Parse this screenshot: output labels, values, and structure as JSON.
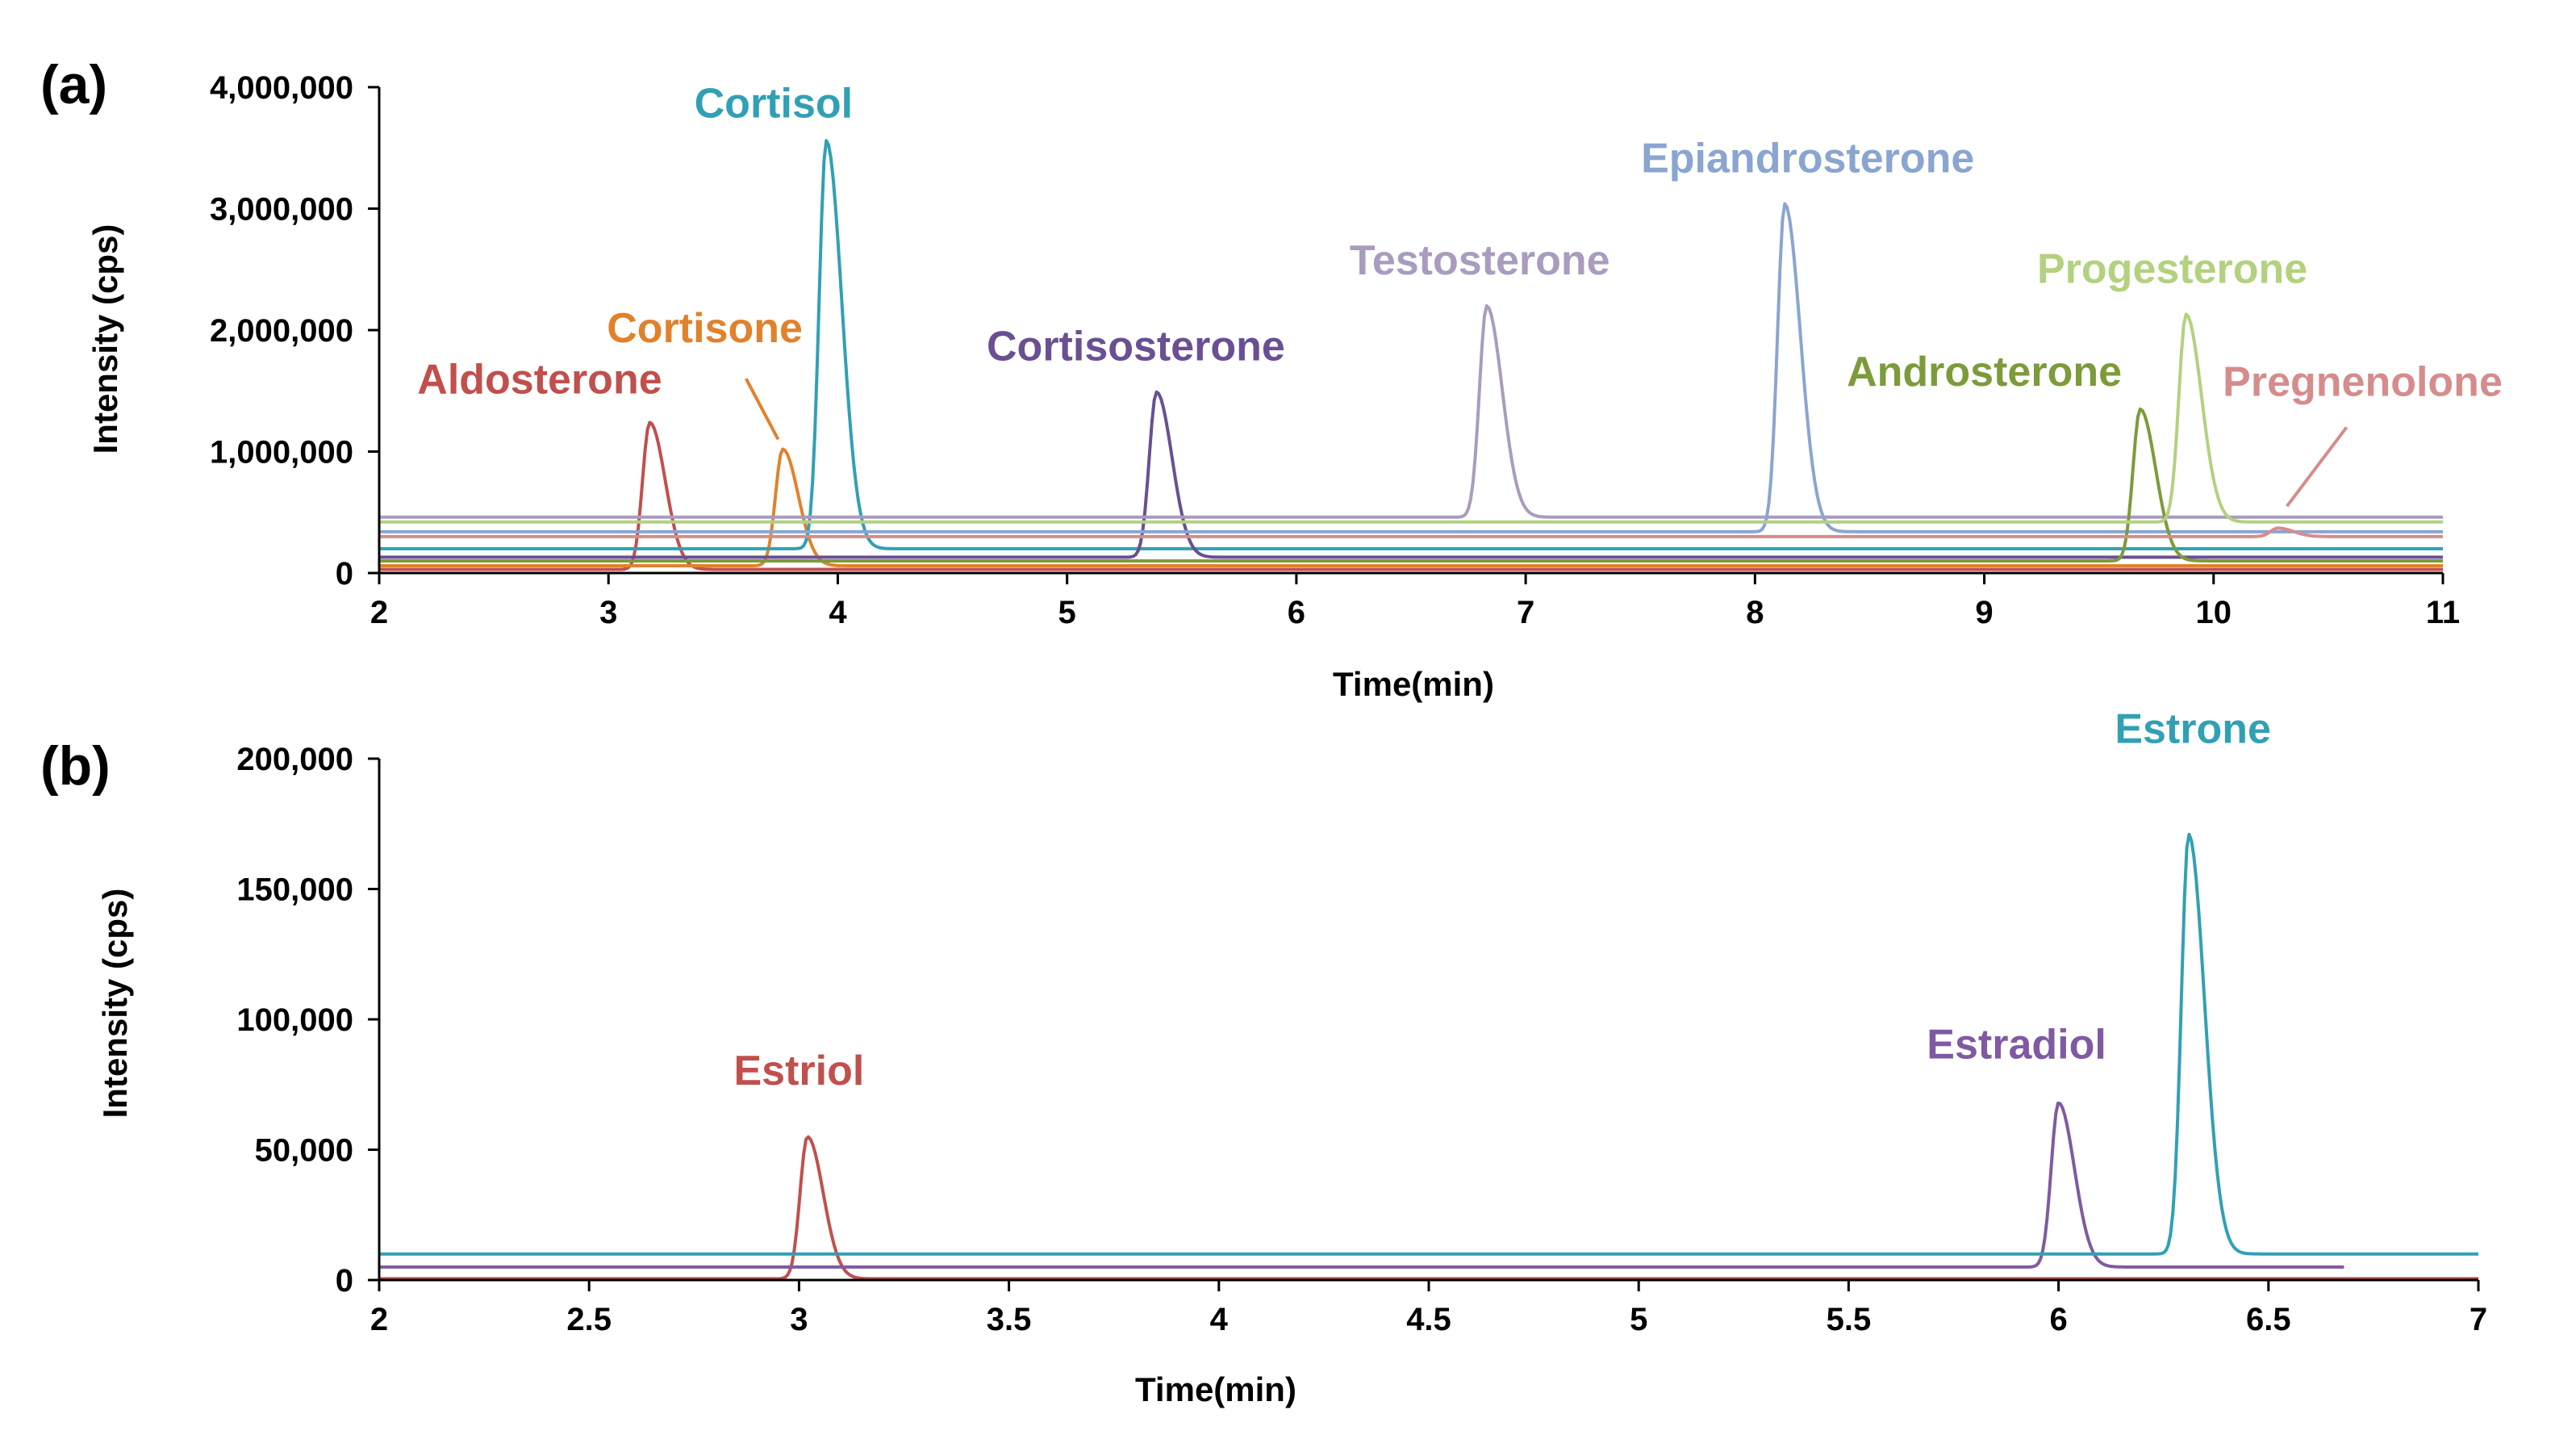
{
  "chart_data": [
    {
      "type": "line",
      "panel_label": "(a)",
      "xlabel": "Time(min)",
      "ylabel": "Intensity (cps)",
      "xlim": [
        2,
        11
      ],
      "ylim": [
        0,
        4000000
      ],
      "x_ticks": [
        2,
        3,
        4,
        5,
        6,
        7,
        8,
        9,
        10,
        11
      ],
      "x_tick_labels": [
        "2",
        "3",
        "4",
        "5",
        "6",
        "7",
        "8",
        "9",
        "10",
        "11"
      ],
      "y_ticks": [
        0,
        1000000,
        2000000,
        3000000,
        4000000
      ],
      "y_tick_labels": [
        "0",
        "1,000,000",
        "2,000,000",
        "3,000,000",
        "4,000,000"
      ],
      "series": [
        {
          "name": "Aldosterone",
          "color": "#c0504d",
          "baseline": 30000,
          "peak_time": 3.18,
          "peak_height": 1240000,
          "label_text": "Aldosterone",
          "leader": false,
          "label_at": [
            2.7,
            1480000
          ]
        },
        {
          "name": "Cortisone",
          "color": "#e0822d",
          "baseline": 60000,
          "peak_time": 3.76,
          "peak_height": 1020000,
          "label_text": "Cortisone",
          "leader": true,
          "leader_from": [
            3.6,
            1600000
          ],
          "leader_to": [
            3.74,
            1100000
          ],
          "label_at": [
            3.42,
            1900000
          ]
        },
        {
          "name": "Cortisol",
          "color": "#31a0b5",
          "baseline": 200000,
          "peak_time": 3.95,
          "peak_height": 3560000,
          "label_text": "Cortisol",
          "leader": false,
          "label_at": [
            3.72,
            3750000
          ]
        },
        {
          "name": "Cortisosterone",
          "color": "#6a4f93",
          "baseline": 130000,
          "peak_time": 5.39,
          "peak_height": 1490000,
          "label_text": "Cortisosterone",
          "leader": false,
          "label_at": [
            5.3,
            1750000
          ]
        },
        {
          "name": "Testosterone",
          "color": "#a99cbf",
          "baseline": 460000,
          "peak_time": 6.83,
          "peak_height": 2200000,
          "label_text": "Testosterone",
          "leader": false,
          "label_at": [
            6.8,
            2460000
          ]
        },
        {
          "name": "Epiandrosterone",
          "color": "#8aa5d0",
          "baseline": 340000,
          "peak_time": 8.13,
          "peak_height": 3040000,
          "label_text": "Epiandrosterone",
          "leader": false,
          "label_at": [
            8.23,
            3300000
          ]
        },
        {
          "name": "Androsterone",
          "color": "#7c9b3a",
          "baseline": 100000,
          "peak_time": 9.68,
          "peak_height": 1350000,
          "label_text": "Androsterone",
          "leader": false,
          "label_at": [
            9.0,
            1540000
          ]
        },
        {
          "name": "Progesterone",
          "color": "#b3d17f",
          "baseline": 420000,
          "peak_time": 9.88,
          "peak_height": 2130000,
          "label_text": "Progesterone",
          "leader": false,
          "label_at": [
            9.82,
            2390000
          ]
        },
        {
          "name": "Pregnenolone",
          "color": "#d68c8c",
          "baseline": 300000,
          "peak_time": 10.28,
          "peak_height": 370000,
          "label_text": "Pregnenolone",
          "leader": true,
          "leader_from": [
            10.58,
            1200000
          ],
          "leader_to": [
            10.32,
            550000
          ],
          "label_at": [
            10.65,
            1460000
          ]
        }
      ]
    },
    {
      "type": "line",
      "panel_label": "(b)",
      "xlabel": "Time(min)",
      "ylabel": "Intensity (cps)",
      "xlim": [
        2,
        7
      ],
      "ylim": [
        0,
        200000
      ],
      "x_ticks": [
        2,
        2.5,
        3,
        3.5,
        4,
        4.5,
        5,
        5.5,
        6,
        6.5,
        7
      ],
      "x_tick_labels": [
        "2",
        "2.5",
        "3",
        "3.5",
        "4",
        "4.5",
        "5",
        "5.5",
        "6",
        "6.5",
        "7"
      ],
      "y_ticks": [
        0,
        50000,
        100000,
        150000,
        200000
      ],
      "y_tick_labels": [
        "0",
        "50,000",
        "100,000",
        "150,000",
        "200,000"
      ],
      "series": [
        {
          "name": "Estriol",
          "color": "#c0504d",
          "baseline": 500,
          "peak_time": 3.02,
          "peak_height": 55000,
          "label_text": "Estriol",
          "label_at": [
            3.0,
            75000
          ],
          "x_end": 7
        },
        {
          "name": "Estradiol",
          "color": "#7f5aa2",
          "baseline": 5000,
          "peak_time": 6.0,
          "peak_height": 68000,
          "label_text": "Estradiol",
          "label_at": [
            5.9,
            85000
          ],
          "x_end": 6.68
        },
        {
          "name": "Estrone",
          "color": "#31a0b5",
          "baseline": 10000,
          "peak_time": 6.31,
          "peak_height": 171000,
          "label_text": "Estrone",
          "label_at": [
            6.32,
            206000
          ],
          "x_end": 7
        }
      ]
    }
  ]
}
